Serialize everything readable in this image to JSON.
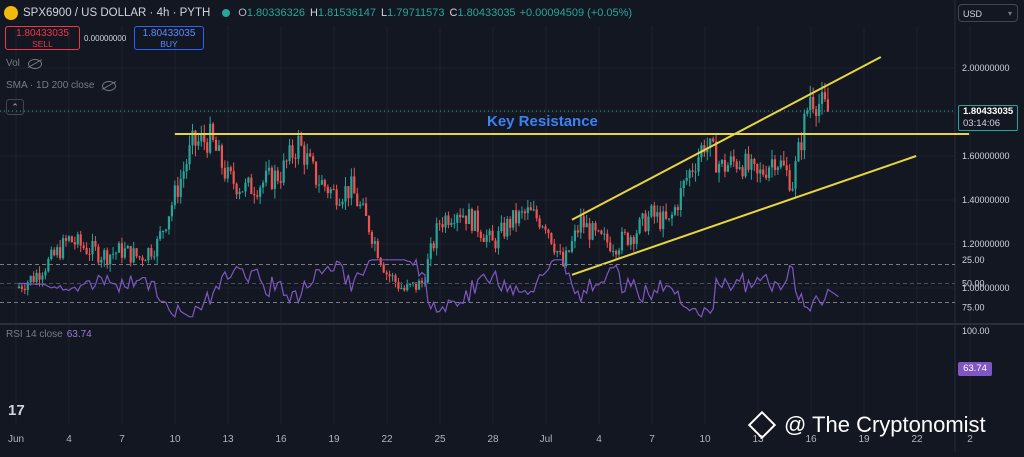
{
  "header": {
    "title": "SPX6900 / US DOLLAR · 4h · PYTH",
    "symbol_icon": "spx-coin-icon",
    "status_color": "#26a69a",
    "o_label": "O",
    "o": "1.80336326",
    "h_label": "H",
    "h": "1.81536147",
    "l_label": "L",
    "l": "1.79711573",
    "c_label": "C",
    "c": "1.80433035",
    "change": "+0.00094509 (+0.05%)"
  },
  "trade": {
    "sell_price": "1.80433035",
    "sell_label": "SELL",
    "spread": "0.00000000",
    "buy_price": "1.80433035",
    "buy_label": "BUY"
  },
  "indicators": {
    "vol_label": "Vol",
    "sma_label": "SMA · 1D 200 close"
  },
  "currency": "USD",
  "price_tag": {
    "price": "1.80433035",
    "countdown": "03:14:06"
  },
  "rsi": {
    "label": "RSI 14 close",
    "value": "63.74"
  },
  "branding": {
    "tv_logo": "17",
    "watermark": "@ The Cryptonomist"
  },
  "colors": {
    "up": "#26a69a",
    "down": "#ef5350",
    "lines": "#e8d540",
    "rsi": "#7e57c2",
    "accent": "#3b82f6"
  },
  "chart_data": {
    "type": "candlestick",
    "x_ticks": [
      "Jun",
      "4",
      "7",
      "10",
      "13",
      "16",
      "19",
      "22",
      "25",
      "28",
      "Jul",
      "4",
      "7",
      "10",
      "13",
      "16",
      "19",
      "22",
      "2"
    ],
    "y_ticks": [
      "2.00000000",
      "1.80000000",
      "1.60000000",
      "1.40000000",
      "1.20000000",
      "1.00000000"
    ],
    "ylim": [
      0.9,
      2.1
    ],
    "last_price": 1.80433035,
    "close_path": [
      {
        "day": 0,
        "v": 1.0
      },
      {
        "day": 1,
        "v": 1.05
      },
      {
        "day": 2,
        "v": 1.13
      },
      {
        "day": 3,
        "v": 1.22
      },
      {
        "day": 4,
        "v": 1.18
      },
      {
        "day": 5,
        "v": 1.15
      },
      {
        "day": 6,
        "v": 1.17
      },
      {
        "day": 7,
        "v": 1.14
      },
      {
        "day": 8,
        "v": 1.2
      },
      {
        "day": 9,
        "v": 1.42
      },
      {
        "day": 10,
        "v": 1.65
      },
      {
        "day": 11,
        "v": 1.68
      },
      {
        "day": 12,
        "v": 1.5
      },
      {
        "day": 13,
        "v": 1.45
      },
      {
        "day": 14,
        "v": 1.48
      },
      {
        "day": 15,
        "v": 1.52
      },
      {
        "day": 16,
        "v": 1.66
      },
      {
        "day": 17,
        "v": 1.5
      },
      {
        "day": 18,
        "v": 1.43
      },
      {
        "day": 19,
        "v": 1.45
      },
      {
        "day": 20,
        "v": 1.28
      },
      {
        "day": 21,
        "v": 1.07
      },
      {
        "day": 22,
        "v": 0.99
      },
      {
        "day": 23,
        "v": 1.02
      },
      {
        "day": 24,
        "v": 1.3
      },
      {
        "day": 25,
        "v": 1.36
      },
      {
        "day": 26,
        "v": 1.3
      },
      {
        "day": 27,
        "v": 1.2
      },
      {
        "day": 28,
        "v": 1.3
      },
      {
        "day": 29,
        "v": 1.34
      },
      {
        "day": 30,
        "v": 1.3
      },
      {
        "day": 31,
        "v": 1.1
      },
      {
        "day": 32,
        "v": 1.3
      },
      {
        "day": 33,
        "v": 1.22
      },
      {
        "day": 34,
        "v": 1.2
      },
      {
        "day": 35,
        "v": 1.25
      },
      {
        "day": 36,
        "v": 1.33
      },
      {
        "day": 37,
        "v": 1.29
      },
      {
        "day": 38,
        "v": 1.5
      },
      {
        "day": 39,
        "v": 1.66
      },
      {
        "day": 40,
        "v": 1.55
      },
      {
        "day": 41,
        "v": 1.58
      },
      {
        "day": 42,
        "v": 1.5
      },
      {
        "day": 43,
        "v": 1.6
      },
      {
        "day": 44,
        "v": 1.48
      },
      {
        "day": 45,
        "v": 1.88
      },
      {
        "day": 46,
        "v": 1.8
      }
    ],
    "annotations": [
      {
        "text": "Key Resistance",
        "type": "horizontal",
        "value": 1.7,
        "from_day": 9,
        "to_day": 54
      },
      {
        "text": "",
        "type": "trendline-upper",
        "from": [
          31.5,
          1.31
        ],
        "to": [
          49,
          2.05
        ]
      },
      {
        "text": "",
        "type": "trendline-lower",
        "from": [
          31.5,
          1.06
        ],
        "to": [
          51,
          1.6
        ]
      }
    ],
    "rsi": {
      "ylim": [
        20,
        100
      ],
      "y_ticks": [
        "100.00",
        "75.00",
        "50.00",
        "25.00"
      ],
      "bands": [
        70,
        30
      ],
      "current": 63.74
    },
    "grid": true
  }
}
